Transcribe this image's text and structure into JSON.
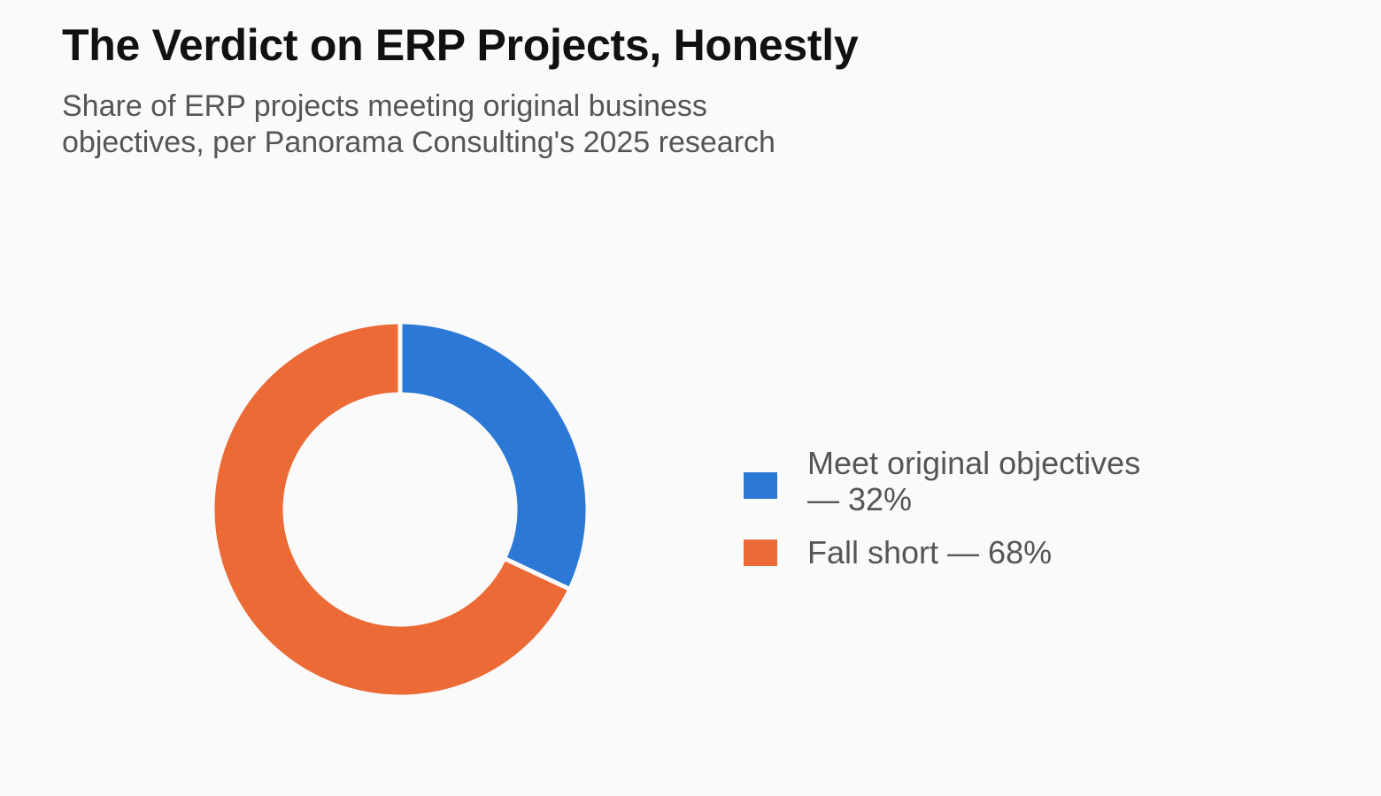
{
  "title": "The Verdict on ERP Projects, Honestly",
  "subtitle_lines": [
    "Share of ERP projects meeting original business",
    "objectives, per Panorama Consulting's 2025 research"
  ],
  "chart_data": {
    "type": "pie",
    "variant": "donut",
    "title": "The Verdict on ERP Projects, Honestly",
    "subtitle": "Share of ERP projects meeting original business objectives, per Panorama Consulting's 2025 research",
    "unit": "%",
    "legend_position": "right",
    "slices": [
      {
        "name": "Meet original objectives",
        "value": 32,
        "color": "#2b78d6"
      },
      {
        "name": "Fall short",
        "value": 68,
        "color": "#ec6a36"
      }
    ]
  },
  "legend": [
    {
      "lines": [
        "Meet original objectives",
        "— 32%"
      ],
      "color": "#2b78d6"
    },
    {
      "lines": [
        "Fall short — 68%"
      ],
      "color": "#ec6a36"
    }
  ]
}
